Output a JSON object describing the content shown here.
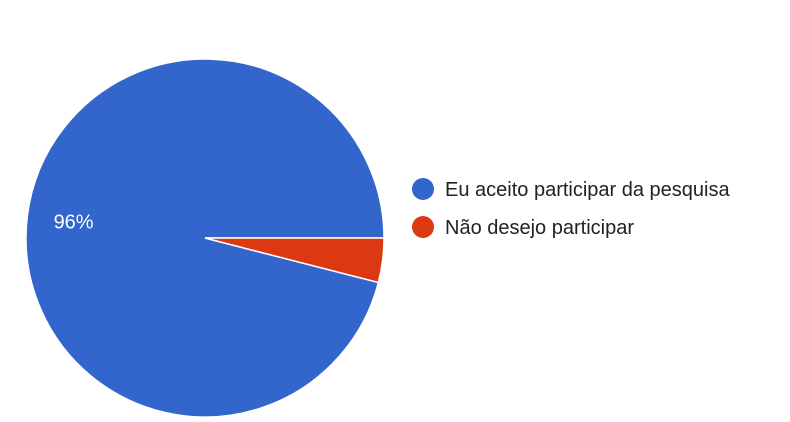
{
  "chart_data": {
    "type": "pie",
    "slices": [
      {
        "label": "Eu aceito participar da pesquisa",
        "value": 96,
        "color": "#3366cc",
        "display": "96%"
      },
      {
        "label": "Não desejo participar",
        "value": 4,
        "color": "#dc3912",
        "display": ""
      }
    ],
    "legend_position": "right"
  }
}
